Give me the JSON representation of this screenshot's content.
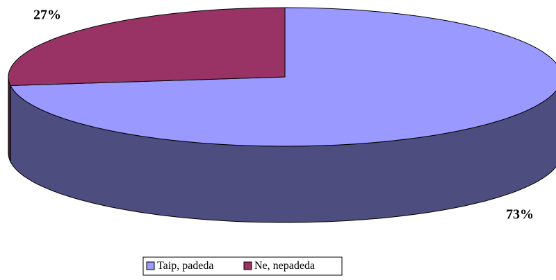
{
  "chart_data": {
    "type": "pie3d",
    "categories": [
      "Taip, padeda",
      "Ne, nepadeda"
    ],
    "values": [
      73,
      27
    ],
    "value_labels": [
      "73%",
      "27%"
    ],
    "colors": [
      "#9999ff",
      "#993366"
    ],
    "legend": "bottom"
  }
}
